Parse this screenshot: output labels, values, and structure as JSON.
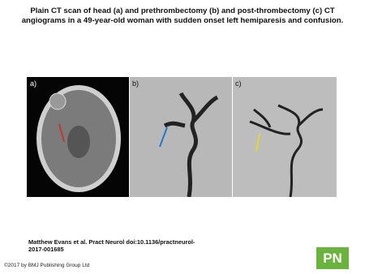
{
  "header": {
    "title": "Plain CT scan of head (a) and prethrombectomy (b) and post-thrombectomy (c) CT angiograms in a 49-year-old woman with sudden onset left hemiparesis and confusion."
  },
  "figure": {
    "panels": [
      {
        "label": "a)"
      },
      {
        "label": "b)"
      },
      {
        "label": "c)"
      }
    ]
  },
  "citation": "Matthew Evans et al. Pract Neurol doi:10.1136/practneurol-2017-001685",
  "logo": "PN",
  "footer": "©2017 by BMJ Publishing Group Ltd"
}
